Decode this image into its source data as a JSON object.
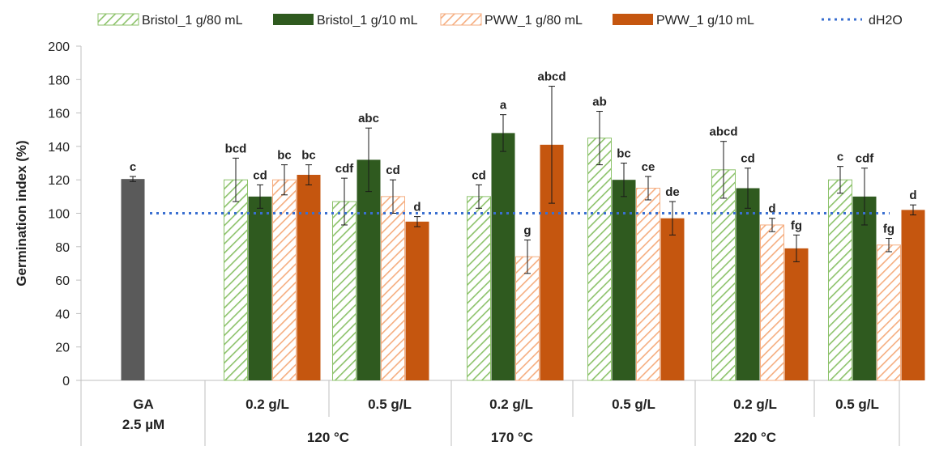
{
  "chart_data": {
    "type": "bar",
    "ylabel": "Germination index (%)",
    "ylim": [
      0,
      200
    ],
    "yticks": [
      "0",
      "20",
      "40",
      "60",
      "80",
      "100",
      "120",
      "140",
      "160",
      "180",
      "200"
    ],
    "grid": false,
    "legend_position": "top",
    "reference_line": {
      "name": "dH2O",
      "value": 100,
      "color": "#3a6fd0"
    },
    "control": {
      "label_line1": "GA",
      "label_line2": "2.5 µM",
      "value": 120.5,
      "error": 1.5,
      "sig": "c",
      "color": "#5a5a5a"
    },
    "series": [
      {
        "name": "Bristol_1 g/80 mL",
        "style": "hatched",
        "color": "#8cc26a"
      },
      {
        "name": "Bristol_1 g/10 mL",
        "style": "solid",
        "color": "#2f5a1f"
      },
      {
        "name": "PWW_1 g/80 mL",
        "style": "hatched",
        "color": "#f5ad7f"
      },
      {
        "name": "PWW_1 g/10 mL",
        "style": "solid",
        "color": "#c5560f"
      }
    ],
    "groups": [
      {
        "temperature": "120 °C",
        "concentrations": [
          {
            "label": "0.2 g/L",
            "values": [
              120,
              110,
              120,
              123
            ],
            "errors": [
              13,
              7,
              9,
              6
            ],
            "sig": [
              "bcd",
              "cd",
              "bc",
              "bc"
            ]
          },
          {
            "label": "0.5 g/L",
            "values": [
              107,
              132,
              110,
              95
            ],
            "errors": [
              14,
              19,
              10,
              3
            ],
            "sig": [
              "cdf",
              "abc",
              "cd",
              "d"
            ]
          }
        ]
      },
      {
        "temperature": "170 °C",
        "concentrations": [
          {
            "label": "0.2 g/L",
            "values": [
              110,
              148,
              74,
              141
            ],
            "errors": [
              7,
              11,
              10,
              35
            ],
            "sig": [
              "cd",
              "a",
              "g",
              "abcd"
            ]
          },
          {
            "label": "0.5 g/L",
            "values": [
              145,
              120,
              115,
              97
            ],
            "errors": [
              16,
              10,
              7,
              10
            ],
            "sig": [
              "ab",
              "bc",
              "ce",
              "de"
            ]
          }
        ]
      },
      {
        "temperature": "220 °C",
        "concentrations": [
          {
            "label": "0.2 g/L",
            "values": [
              126,
              115,
              93,
              79
            ],
            "errors": [
              17,
              12,
              4,
              8
            ],
            "sig": [
              "abcd",
              "cd",
              "d",
              "fg"
            ]
          },
          {
            "label": "0.5 g/L",
            "values": [
              120,
              110,
              81,
              102
            ],
            "errors": [
              8,
              17,
              4,
              3
            ],
            "sig": [
              "c",
              "cdf",
              "fg",
              "d"
            ]
          }
        ]
      }
    ]
  }
}
